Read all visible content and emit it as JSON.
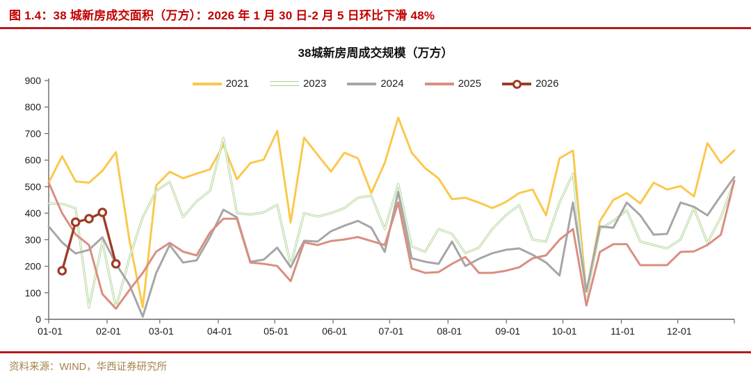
{
  "figure": {
    "caption": "图 1.4：38 城新房成交面积（万方）：2026 年 1 月 30 日-2 月 5 日环比下滑 48%",
    "source": "资料来源：WIND，华西证券研究所"
  },
  "colors": {
    "caption_red": "#c00000",
    "rule_red": "#b51a1a",
    "source_tan": "#a5824c",
    "axis": "#666666",
    "tick_text": "#1a1a1a"
  },
  "chart_data": {
    "type": "line",
    "title": "38城新房周成交规模（万方）",
    "xlabel": "",
    "ylabel": "",
    "ylim": [
      0,
      900
    ],
    "y_ticks": [
      0,
      100,
      200,
      300,
      400,
      500,
      600,
      700,
      800,
      900
    ],
    "grid": false,
    "legend_position": "top-center",
    "x_unit": "week-of-year (52 weeks)",
    "x_ticks": [
      {
        "label": "01-01",
        "pos": 0.0
      },
      {
        "label": "02-01",
        "pos": 0.0852
      },
      {
        "label": "03-01",
        "pos": 0.1621
      },
      {
        "label": "04-01",
        "pos": 0.2473
      },
      {
        "label": "05-01",
        "pos": 0.3297
      },
      {
        "label": "06-01",
        "pos": 0.4148
      },
      {
        "label": "07-01",
        "pos": 0.4973
      },
      {
        "label": "08-01",
        "pos": 0.5824
      },
      {
        "label": "09-01",
        "pos": 0.6676
      },
      {
        "label": "10-01",
        "pos": 0.75
      },
      {
        "label": "11-01",
        "pos": 0.8352
      },
      {
        "label": "12-01",
        "pos": 0.9176
      }
    ],
    "series": [
      {
        "name": "2021",
        "color": "#fbc84c",
        "width": 3,
        "values": [
          515,
          615,
          520,
          515,
          560,
          630,
          300,
          45,
          505,
          556,
          532,
          549,
          565,
          658,
          528,
          589,
          602,
          710,
          365,
          685,
          620,
          557,
          628,
          607,
          476,
          590,
          760,
          628,
          570,
          531,
          453,
          458,
          440,
          419,
          442,
          476,
          489,
          392,
          607,
          636,
          97,
          370,
          450,
          476,
          437,
          515,
          489,
          502,
          463,
          664,
          589,
          636
        ]
      },
      {
        "name": "2023",
        "color": "#a9d08e",
        "width": 3,
        "style": "double",
        "values": [
          437,
          435,
          419,
          44,
          293,
          44,
          230,
          385,
          484,
          518,
          385,
          445,
          484,
          683,
          400,
          395,
          403,
          432,
          204,
          400,
          387,
          400,
          419,
          458,
          466,
          340,
          510,
          275,
          254,
          340,
          322,
          249,
          270,
          340,
          392,
          430,
          300,
          293,
          440,
          549,
          86,
          340,
          371,
          411,
          293,
          280,
          267,
          301,
          419,
          288,
          385,
          520
        ]
      },
      {
        "name": "2024",
        "color": "#a6a6a6",
        "width": 3,
        "values": [
          350,
          290,
          248,
          262,
          309,
          209,
          131,
          10,
          175,
          280,
          214,
          222,
          310,
          413,
          384,
          217,
          225,
          270,
          196,
          296,
          293,
          332,
          353,
          371,
          345,
          254,
          480,
          230,
          217,
          209,
          293,
          201,
          228,
          249,
          262,
          267,
          243,
          214,
          165,
          440,
          105,
          350,
          345,
          440,
          392,
          319,
          322,
          440,
          424,
          392,
          466,
          536
        ]
      },
      {
        "name": "2025",
        "color": "#d98e80",
        "width": 3,
        "values": [
          515,
          400,
          320,
          280,
          95,
          40,
          110,
          175,
          255,
          288,
          255,
          241,
          327,
          379,
          379,
          214,
          209,
          201,
          144,
          290,
          280,
          295,
          301,
          310,
          295,
          280,
          440,
          191,
          175,
          178,
          209,
          235,
          175,
          175,
          183,
          196,
          230,
          241,
          300,
          340,
          52,
          254,
          283,
          283,
          204,
          204,
          204,
          254,
          256,
          280,
          319,
          523
        ]
      },
      {
        "name": "2026",
        "color": "#9e3b25",
        "width": 3.4,
        "marker": "circle",
        "values": [
          null,
          183,
          366,
          379,
          403,
          209
        ]
      }
    ]
  }
}
